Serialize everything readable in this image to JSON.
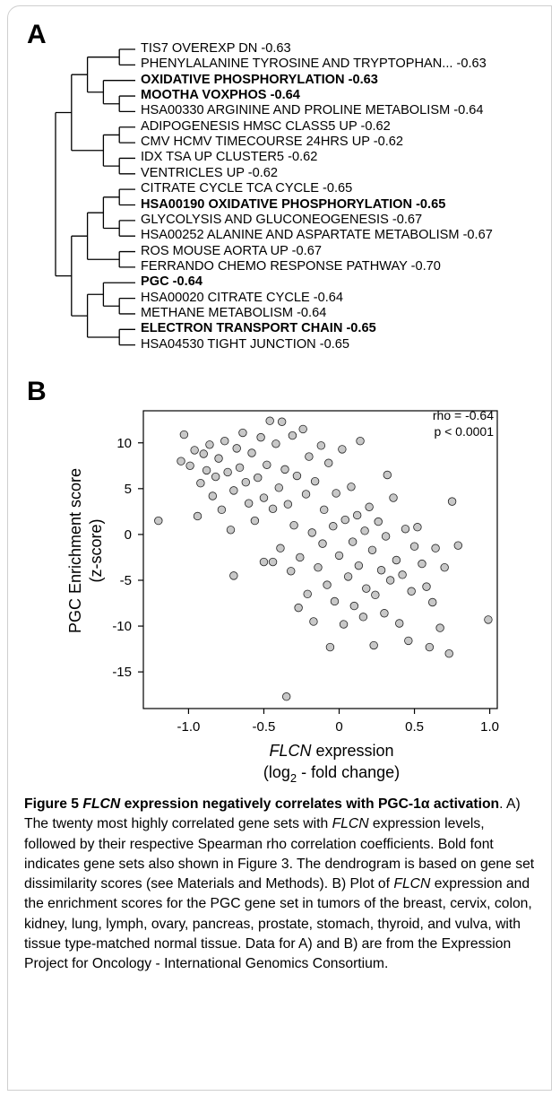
{
  "panel_a": {
    "label": "A",
    "leaves": [
      {
        "name": "TIS7 OVEREXP DN",
        "rho": "-0.63",
        "bold": false
      },
      {
        "name": "PHENYLALANINE TYROSINE AND TRYPTOPHAN...",
        "rho": "-0.63",
        "bold": false
      },
      {
        "name": "OXIDATIVE PHOSPHORYLATION",
        "rho": "-0.63",
        "bold": true
      },
      {
        "name": "MOOTHA VOXPHOS",
        "rho": "-0.64",
        "bold": true
      },
      {
        "name": "HSA00330 ARGININE AND PROLINE METABOLISM",
        "rho": "-0.64",
        "bold": false
      },
      {
        "name": "ADIPOGENESIS HMSC CLASS5 UP",
        "rho": "-0.62",
        "bold": false
      },
      {
        "name": "CMV HCMV TIMECOURSE 24HRS UP",
        "rho": "-0.62",
        "bold": false
      },
      {
        "name": "IDX TSA UP CLUSTER5",
        "rho": "-0.62",
        "bold": false
      },
      {
        "name": "VENTRICLES UP",
        "rho": "-0.62",
        "bold": false
      },
      {
        "name": "CITRATE CYCLE TCA CYCLE",
        "rho": "-0.65",
        "bold": false
      },
      {
        "name": "HSA00190 OXIDATIVE PHOSPHORYLATION",
        "rho": "-0.65",
        "bold": true
      },
      {
        "name": "GLYCOLYSIS AND GLUCONEOGENESIS",
        "rho": "-0.67",
        "bold": false
      },
      {
        "name": "HSA00252 ALANINE AND ASPARTATE METABOLISM",
        "rho": "-0.67",
        "bold": false
      },
      {
        "name": "ROS MOUSE AORTA UP",
        "rho": "-0.67",
        "bold": false
      },
      {
        "name": "FERRANDO CHEMO RESPONSE PATHWAY",
        "rho": "-0.70",
        "bold": false
      },
      {
        "name": "PGC",
        "rho": "-0.64",
        "bold": true
      },
      {
        "name": "HSA00020 CITRATE CYCLE",
        "rho": "-0.64",
        "bold": false
      },
      {
        "name": "METHANE METABOLISM",
        "rho": "-0.64",
        "bold": false
      },
      {
        "name": "ELECTRON TRANSPORT CHAIN",
        "rho": "-0.65",
        "bold": true
      },
      {
        "name": "HSA04530 TIGHT JUNCTION",
        "rho": "-0.65",
        "bold": false
      }
    ]
  },
  "panel_b": {
    "label": "B",
    "ylabel_line1": "PGC Enrichment score",
    "ylabel_line2": "(z-score)",
    "xlabel_gene": "FLCN",
    "xlabel_rest": " expression",
    "xlabel_line2_pre": "(log",
    "xlabel_line2_sub": "2",
    "xlabel_line2_post": " - fold change)",
    "annotation_rho": "rho = -0.64",
    "annotation_p": "p < 0.0001",
    "point_color": "#c8c8c8"
  },
  "chart_data": {
    "type": "scatter",
    "title": "",
    "xlabel": "FLCN expression (log2 - fold change)",
    "ylabel": "PGC Enrichment score (z-score)",
    "xlim": [
      -1.3,
      1.05
    ],
    "ylim": [
      -19,
      13.5
    ],
    "xticks": [
      "-1.0",
      "-0.5",
      "0",
      "0.5",
      "1.0"
    ],
    "yticks": [
      "10",
      "5",
      "0",
      "-5",
      "-10",
      "-15"
    ],
    "xtick_values": [
      -1.0,
      -0.5,
      0,
      0.5,
      1.0
    ],
    "ytick_values": [
      10,
      5,
      0,
      -5,
      -10,
      -15
    ],
    "grid": false,
    "annotations": [
      "rho = -0.64",
      "p < 0.0001"
    ],
    "series": [
      {
        "points": [
          [
            -1.2,
            1.5
          ],
          [
            -1.05,
            8.0
          ],
          [
            -1.03,
            10.9
          ],
          [
            -0.99,
            7.5
          ],
          [
            -0.96,
            9.2
          ],
          [
            -0.94,
            2.0
          ],
          [
            -0.92,
            5.6
          ],
          [
            -0.9,
            8.8
          ],
          [
            -0.88,
            7.0
          ],
          [
            -0.86,
            9.8
          ],
          [
            -0.84,
            4.2
          ],
          [
            -0.82,
            6.3
          ],
          [
            -0.8,
            8.3
          ],
          [
            -0.78,
            2.7
          ],
          [
            -0.76,
            10.2
          ],
          [
            -0.74,
            6.8
          ],
          [
            -0.72,
            0.5
          ],
          [
            -0.7,
            -4.5
          ],
          [
            -0.7,
            4.8
          ],
          [
            -0.68,
            9.4
          ],
          [
            -0.66,
            7.3
          ],
          [
            -0.64,
            11.1
          ],
          [
            -0.62,
            5.7
          ],
          [
            -0.6,
            3.4
          ],
          [
            -0.58,
            8.9
          ],
          [
            -0.56,
            1.5
          ],
          [
            -0.54,
            6.2
          ],
          [
            -0.52,
            10.6
          ],
          [
            -0.5,
            4.0
          ],
          [
            -0.5,
            -3.0
          ],
          [
            -0.48,
            7.6
          ],
          [
            -0.46,
            12.4
          ],
          [
            -0.44,
            2.8
          ],
          [
            -0.44,
            -3.0
          ],
          [
            -0.42,
            9.9
          ],
          [
            -0.4,
            5.1
          ],
          [
            -0.39,
            -1.5
          ],
          [
            -0.38,
            12.3
          ],
          [
            -0.36,
            7.1
          ],
          [
            -0.35,
            -17.7
          ],
          [
            -0.34,
            3.3
          ],
          [
            -0.32,
            -4.0
          ],
          [
            -0.31,
            10.8
          ],
          [
            -0.3,
            1.0
          ],
          [
            -0.28,
            6.4
          ],
          [
            -0.27,
            -8.0
          ],
          [
            -0.26,
            -2.5
          ],
          [
            -0.24,
            11.5
          ],
          [
            -0.22,
            4.4
          ],
          [
            -0.21,
            -6.5
          ],
          [
            -0.2,
            8.5
          ],
          [
            -0.18,
            0.2
          ],
          [
            -0.17,
            -9.5
          ],
          [
            -0.16,
            5.8
          ],
          [
            -0.14,
            -3.6
          ],
          [
            -0.12,
            9.7
          ],
          [
            -0.11,
            -1.0
          ],
          [
            -0.1,
            2.7
          ],
          [
            -0.08,
            -5.5
          ],
          [
            -0.07,
            7.8
          ],
          [
            -0.06,
            -12.3
          ],
          [
            -0.04,
            0.9
          ],
          [
            -0.03,
            -7.3
          ],
          [
            -0.02,
            4.5
          ],
          [
            0.0,
            -2.3
          ],
          [
            0.02,
            9.3
          ],
          [
            0.03,
            -9.8
          ],
          [
            0.04,
            1.6
          ],
          [
            0.06,
            -4.6
          ],
          [
            0.08,
            5.2
          ],
          [
            0.09,
            -0.8
          ],
          [
            0.1,
            -7.8
          ],
          [
            0.12,
            2.1
          ],
          [
            0.13,
            -3.4
          ],
          [
            0.14,
            10.2
          ],
          [
            0.16,
            -9.0
          ],
          [
            0.17,
            0.4
          ],
          [
            0.18,
            -5.9
          ],
          [
            0.2,
            3.0
          ],
          [
            0.22,
            -1.7
          ],
          [
            0.23,
            -12.1
          ],
          [
            0.24,
            -6.6
          ],
          [
            0.26,
            1.4
          ],
          [
            0.28,
            -3.9
          ],
          [
            0.3,
            -8.6
          ],
          [
            0.31,
            -0.2
          ],
          [
            0.32,
            6.5
          ],
          [
            0.34,
            -5.0
          ],
          [
            0.36,
            4.0
          ],
          [
            0.38,
            -2.8
          ],
          [
            0.4,
            -9.7
          ],
          [
            0.42,
            -4.4
          ],
          [
            0.44,
            0.6
          ],
          [
            0.46,
            -11.6
          ],
          [
            0.48,
            -6.2
          ],
          [
            0.5,
            -1.3
          ],
          [
            0.52,
            0.8
          ],
          [
            0.55,
            -3.2
          ],
          [
            0.58,
            -5.7
          ],
          [
            0.6,
            -12.3
          ],
          [
            0.62,
            -7.4
          ],
          [
            0.64,
            -1.5
          ],
          [
            0.67,
            -10.2
          ],
          [
            0.7,
            -3.6
          ],
          [
            0.73,
            -13.0
          ],
          [
            0.75,
            3.6
          ],
          [
            0.79,
            -1.2
          ],
          [
            0.99,
            -9.3
          ]
        ]
      }
    ]
  },
  "caption": {
    "fig_label": "Figure 5 ",
    "title_gene": "FLCN",
    "title_mid": " expression negatively correlates with PGC-1",
    "title_alpha": "α",
    "title_end": " activation",
    "part1": ". A) The twenty most highly correlated gene sets with ",
    "gene1": "FLCN",
    "part2": " expression levels, followed by their respective Spearman rho correlation coefficients. Bold font indicates gene sets also shown in Figure 3. The dendrogram is based on gene set dissimilarity scores (see Materials and Methods). B) Plot of ",
    "gene2": "FLCN",
    "part3": " expression and the enrichment scores for the PGC gene set in tumors of the breast, cervix, colon, kidney, lung, lymph, ovary, pancreas, prostate, stomach, thyroid, and vulva, with tissue type-matched normal tissue. Data for A) and B) are from the Expression Project for Oncology - International Genomics Consortium."
  }
}
